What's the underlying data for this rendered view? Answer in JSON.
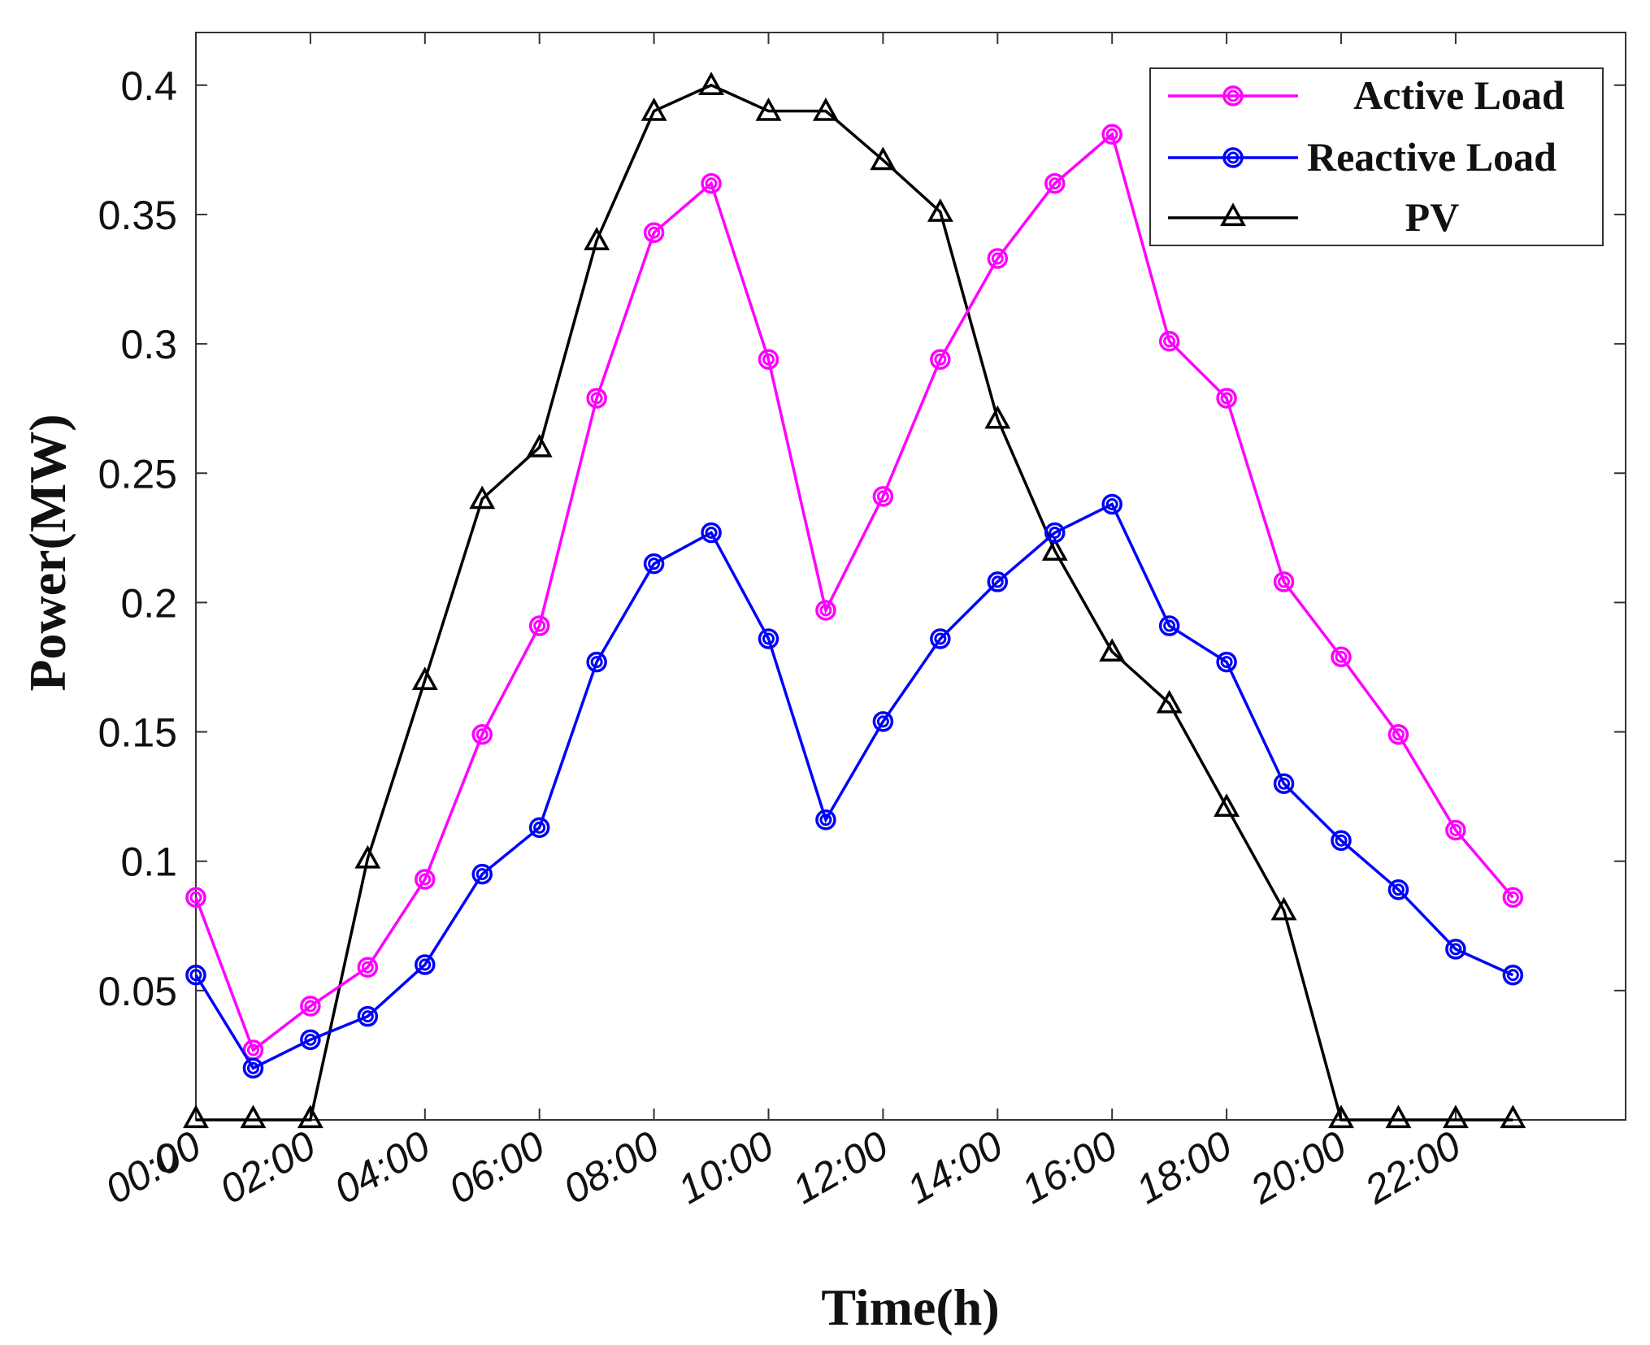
{
  "chart_data": {
    "type": "line",
    "title": "",
    "xlabel": "Time(h)",
    "ylabel": "Power(MW)",
    "ylim": [
      0,
      0.43
    ],
    "xlim": [
      0,
      25
    ],
    "x": [
      0,
      1,
      2,
      3,
      4,
      5,
      6,
      7,
      8,
      9,
      10,
      11,
      12,
      13,
      14,
      15,
      16,
      17,
      18,
      19,
      20,
      21,
      22,
      23
    ],
    "xticks": [
      {
        "pos": 0,
        "label": "00:00"
      },
      {
        "pos": 2,
        "label": "02:00"
      },
      {
        "pos": 4,
        "label": "04:00"
      },
      {
        "pos": 6,
        "label": "06:00"
      },
      {
        "pos": 8,
        "label": "08:00"
      },
      {
        "pos": 10,
        "label": "10:00"
      },
      {
        "pos": 12,
        "label": "12:00"
      },
      {
        "pos": 14,
        "label": "14:00"
      },
      {
        "pos": 16,
        "label": "16:00"
      },
      {
        "pos": 18,
        "label": "18:00"
      },
      {
        "pos": 20,
        "label": "20:00"
      },
      {
        "pos": 22,
        "label": "22:00"
      }
    ],
    "yticks": [
      {
        "value": 0.05,
        "label": "0.05"
      },
      {
        "value": 0.1,
        "label": "0.1"
      },
      {
        "value": 0.15,
        "label": "0.15"
      },
      {
        "value": 0.2,
        "label": "0.2"
      },
      {
        "value": 0.25,
        "label": "0.25"
      },
      {
        "value": 0.3,
        "label": "0.3"
      },
      {
        "value": 0.35,
        "label": "0.35"
      },
      {
        "value": 0.4,
        "label": "0.4"
      }
    ],
    "origin_label": "0",
    "grid": false,
    "legend_position": "top-right",
    "series": [
      {
        "name": "Active Load",
        "color": "#ff00ff",
        "marker": "circle",
        "values": [
          0.086,
          0.027,
          0.044,
          0.059,
          0.093,
          0.149,
          0.191,
          0.279,
          0.343,
          0.362,
          0.294,
          0.197,
          0.241,
          0.294,
          0.333,
          0.362,
          0.381,
          0.301,
          0.279,
          0.208,
          0.179,
          0.149,
          0.112,
          0.086
        ]
      },
      {
        "name": "Reactive Load",
        "color": "#0000ff",
        "marker": "circle",
        "values": [
          0.056,
          0.02,
          0.031,
          0.04,
          0.06,
          0.095,
          0.113,
          0.177,
          0.215,
          0.227,
          0.186,
          0.116,
          0.154,
          0.186,
          0.208,
          0.227,
          0.238,
          0.191,
          0.177,
          0.13,
          0.108,
          0.089,
          0.066,
          0.056
        ]
      },
      {
        "name": "PV",
        "color": "#000000",
        "marker": "triangle",
        "values": [
          0,
          0,
          0,
          0.101,
          0.17,
          0.24,
          0.26,
          0.34,
          0.39,
          0.4,
          0.39,
          0.39,
          0.371,
          0.351,
          0.271,
          0.22,
          0.181,
          0.161,
          0.121,
          0.081,
          0,
          0,
          0,
          0
        ]
      }
    ]
  }
}
